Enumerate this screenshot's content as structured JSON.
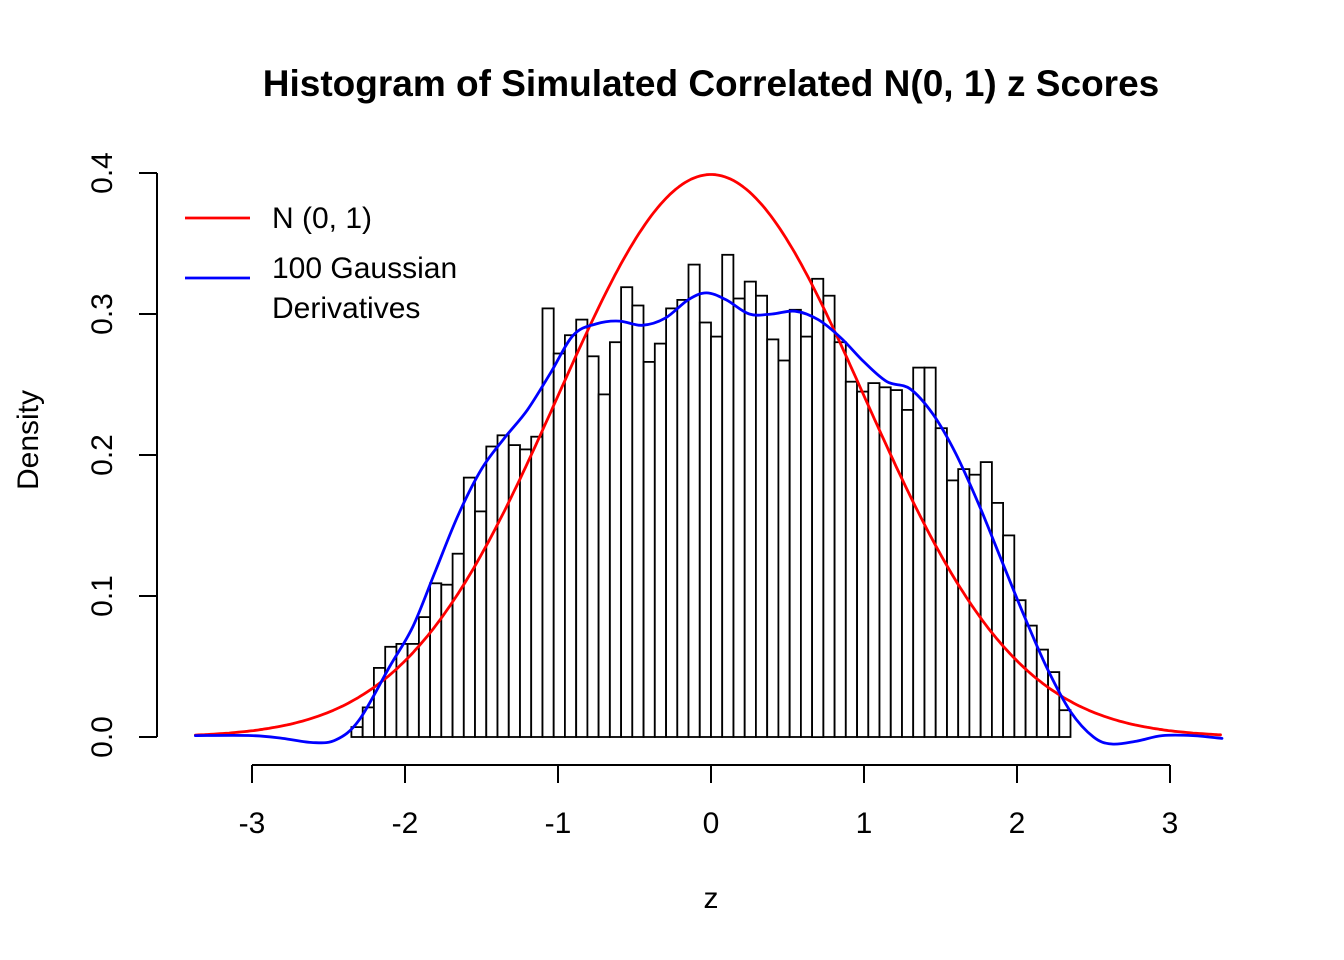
{
  "chart_data": {
    "type": "bar",
    "subtype": "histogram_with_density_curves",
    "title": "Histogram of Simulated Correlated N(0, 1) z Scores",
    "xlabel": "z",
    "ylabel": "Density",
    "xlim": [
      -3.37,
      3.37
    ],
    "ylim": [
      0.0,
      0.4
    ],
    "grid": false,
    "x_ticks": [
      {
        "value": -3,
        "label": "-3"
      },
      {
        "value": -2,
        "label": "-2"
      },
      {
        "value": -1,
        "label": "-1"
      },
      {
        "value": 0,
        "label": "0"
      },
      {
        "value": 1,
        "label": "1"
      },
      {
        "value": 2,
        "label": "2"
      },
      {
        "value": 3,
        "label": "3"
      }
    ],
    "y_ticks": [
      {
        "value": 0.0,
        "label": "0.0"
      },
      {
        "value": 0.1,
        "label": "0.1"
      },
      {
        "value": 0.2,
        "label": "0.2"
      },
      {
        "value": 0.3,
        "label": "0.3"
      },
      {
        "value": 0.4,
        "label": "0.4"
      }
    ],
    "histogram": {
      "bin_start": -2.35,
      "bin_end": 2.35,
      "bar_fill": "#FFFFFF",
      "bar_stroke": "#000000",
      "densities": [
        0.007,
        0.021,
        0.049,
        0.064,
        0.066,
        0.066,
        0.085,
        0.109,
        0.108,
        0.13,
        0.184,
        0.16,
        0.206,
        0.214,
        0.207,
        0.204,
        0.213,
        0.304,
        0.272,
        0.285,
        0.296,
        0.27,
        0.243,
        0.28,
        0.319,
        0.306,
        0.266,
        0.279,
        0.304,
        0.31,
        0.335,
        0.294,
        0.284,
        0.342,
        0.311,
        0.323,
        0.313,
        0.282,
        0.267,
        0.303,
        0.284,
        0.325,
        0.313,
        0.28,
        0.252,
        0.245,
        0.251,
        0.248,
        0.246,
        0.232,
        0.262,
        0.262,
        0.219,
        0.182,
        0.19,
        0.186,
        0.195,
        0.166,
        0.143,
        0.097,
        0.079,
        0.062,
        0.046,
        0.019
      ]
    },
    "curves": [
      {
        "name": "N (0, 1)",
        "color": "#FF0000",
        "kind": "normal_pdf",
        "mean": 0,
        "sd": 1,
        "peak_density": 0.3989,
        "z_range": [
          -3.37,
          3.34
        ]
      },
      {
        "name": "100 Gaussian Derivatives",
        "color": "#0000FF",
        "kind": "smooth_points",
        "peak_density": 0.315,
        "points": [
          [
            -3.37,
            0.001
          ],
          [
            -3.0,
            0.001
          ],
          [
            -2.8,
            -0.001
          ],
          [
            -2.6,
            -0.004
          ],
          [
            -2.45,
            -0.002
          ],
          [
            -2.3,
            0.012
          ],
          [
            -2.1,
            0.05
          ],
          [
            -1.95,
            0.078
          ],
          [
            -1.8,
            0.118
          ],
          [
            -1.65,
            0.158
          ],
          [
            -1.5,
            0.19
          ],
          [
            -1.35,
            0.212
          ],
          [
            -1.2,
            0.232
          ],
          [
            -1.05,
            0.258
          ],
          [
            -0.9,
            0.285
          ],
          [
            -0.75,
            0.293
          ],
          [
            -0.6,
            0.295
          ],
          [
            -0.45,
            0.292
          ],
          [
            -0.3,
            0.297
          ],
          [
            -0.15,
            0.31
          ],
          [
            -0.03,
            0.315
          ],
          [
            0.1,
            0.31
          ],
          [
            0.25,
            0.3
          ],
          [
            0.4,
            0.3
          ],
          [
            0.55,
            0.302
          ],
          [
            0.7,
            0.296
          ],
          [
            0.85,
            0.283
          ],
          [
            1.0,
            0.266
          ],
          [
            1.15,
            0.252
          ],
          [
            1.3,
            0.247
          ],
          [
            1.45,
            0.229
          ],
          [
            1.6,
            0.201
          ],
          [
            1.75,
            0.165
          ],
          [
            1.9,
            0.125
          ],
          [
            2.05,
            0.085
          ],
          [
            2.2,
            0.048
          ],
          [
            2.35,
            0.018
          ],
          [
            2.5,
            0.0
          ],
          [
            2.62,
            -0.005
          ],
          [
            2.78,
            -0.003
          ],
          [
            2.95,
            0.001
          ],
          [
            3.15,
            0.001
          ],
          [
            3.34,
            -0.001
          ]
        ]
      }
    ],
    "legend": {
      "position": "top-left",
      "entries": [
        {
          "label_lines": [
            "N (0, 1)"
          ],
          "color": "#FF0000"
        },
        {
          "label_lines": [
            "100 Gaussian",
            "Derivatives"
          ],
          "color": "#0000FF"
        }
      ]
    },
    "colors": {
      "normal_curve": "#FF0000",
      "derivatives_curve": "#0000FF",
      "axis": "#000000",
      "background": "#FFFFFF"
    }
  }
}
